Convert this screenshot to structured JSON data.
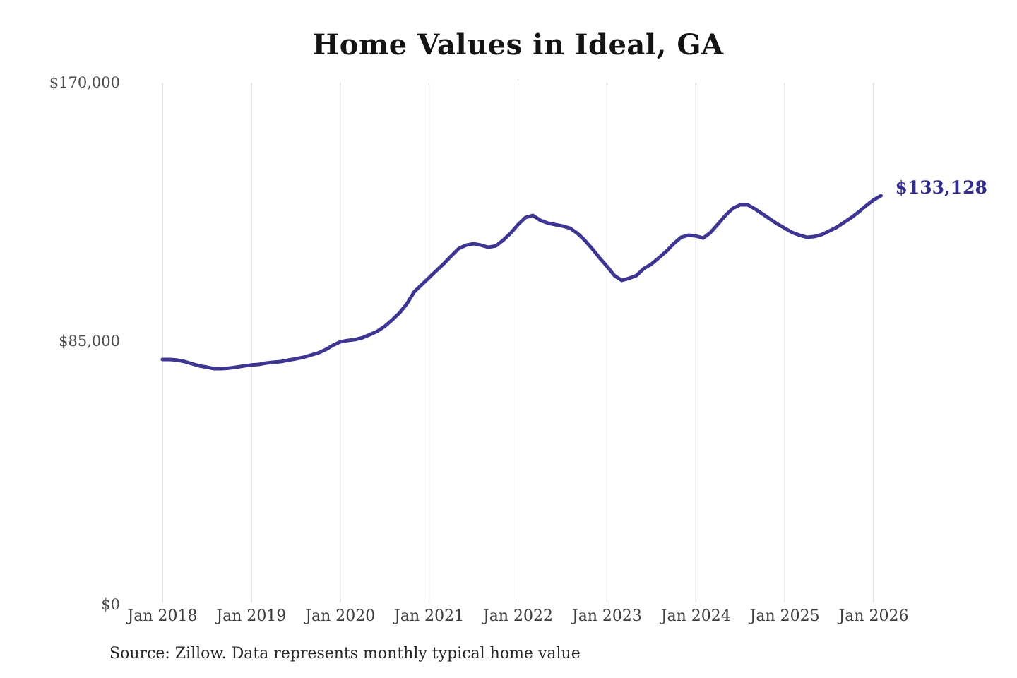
{
  "chart": {
    "title": "Home Values in Ideal, GA",
    "end_label": "$133,128",
    "source_note": "Source: Zillow. Data represents monthly typical home value",
    "colors": {
      "line": "#3c3692",
      "end_label": "#332c8c",
      "grid": "#c9c9c9",
      "title_text": "#141414",
      "y_tick_text": "#4a4a4a",
      "x_tick_text": "#3d3d3d",
      "source_text": "#262626",
      "background": "#ffffff"
    }
  },
  "chart_data": {
    "type": "line",
    "title": "Home Values in Ideal, GA",
    "unit": "USD",
    "frequency": "monthly",
    "x_start": "Jan 2018",
    "x_end": "Feb 2026",
    "x_tick_labels": [
      "Jan 2018",
      "Jan 2019",
      "Jan 2020",
      "Jan 2021",
      "Jan 2022",
      "Jan 2023",
      "Jan 2024",
      "Jan 2025",
      "Jan 2026"
    ],
    "y_tick_labels": [
      "$0",
      "$85,000",
      "$170,000"
    ],
    "ylim": [
      0,
      170000
    ],
    "grid": "vertical-only",
    "legend": "none",
    "final_value": 133128,
    "series": [
      {
        "name": "Typical home value",
        "final_label": "$133,128",
        "values": [
          79700,
          79700,
          79500,
          79000,
          78300,
          77600,
          77200,
          76700,
          76700,
          76900,
          77200,
          77600,
          77900,
          78100,
          78550,
          78800,
          79000,
          79500,
          79900,
          80400,
          81100,
          81800,
          82900,
          84300,
          85450,
          85900,
          86200,
          86800,
          87800,
          88900,
          90500,
          92600,
          94900,
          97900,
          101800,
          104100,
          106400,
          108700,
          111000,
          113500,
          115900,
          117000,
          117450,
          117000,
          116300,
          116750,
          118600,
          120900,
          123700,
          126000,
          126700,
          125100,
          124200,
          123700,
          123250,
          122550,
          120900,
          118600,
          115850,
          112850,
          110100,
          107100,
          105500,
          106200,
          107100,
          109400,
          110800,
          112850,
          114950,
          117450,
          119550,
          120250,
          120000,
          119300,
          121150,
          123900,
          126700,
          129000,
          130150,
          130150,
          128800,
          127150,
          125550,
          123900,
          122550,
          121150,
          120250,
          119550,
          119800,
          120450,
          121600,
          122800,
          124400,
          126000,
          127850,
          129900,
          131750,
          133128
        ]
      }
    ]
  }
}
